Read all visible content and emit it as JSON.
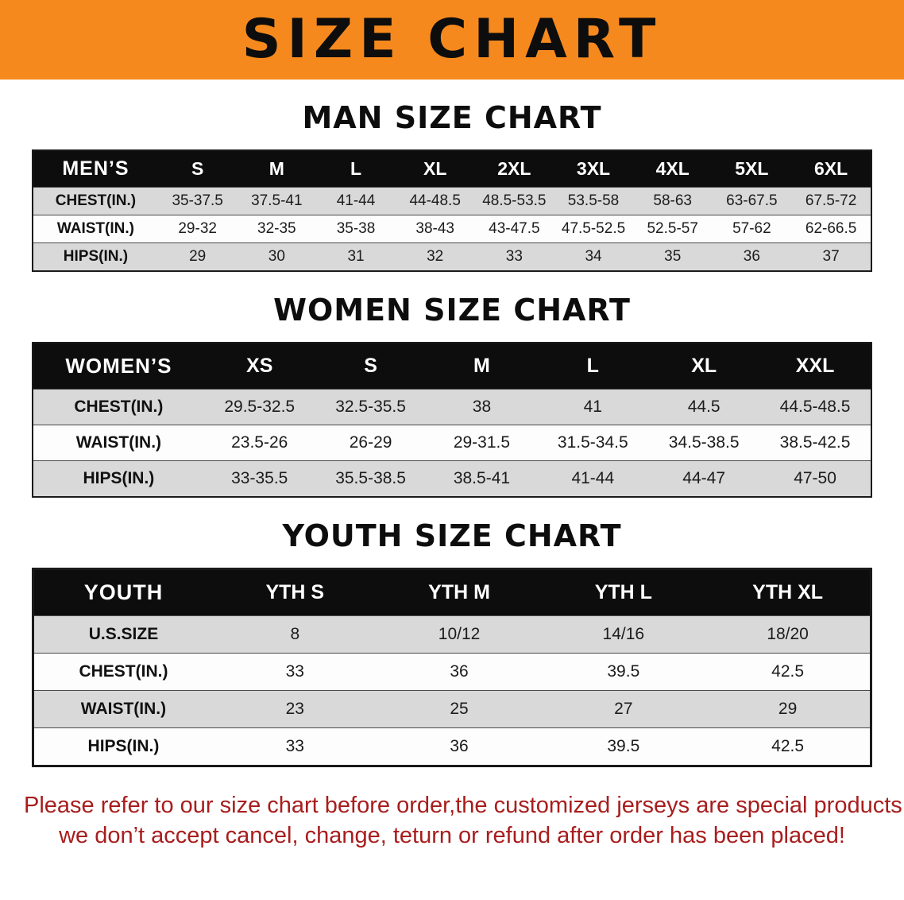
{
  "banner": {
    "title": "SIZE CHART"
  },
  "colors": {
    "banner_bg": "#f6891d",
    "table_header_bg": "#0d0d0d",
    "row_gray": "#d9d9d9",
    "footer_text": "#a81d1d"
  },
  "sections": [
    {
      "heading": "MAN SIZE CHART",
      "table": {
        "header": [
          "MEN’S",
          "S",
          "M",
          "L",
          "XL",
          "2XL",
          "3XL",
          "4XL",
          "5XL",
          "6XL"
        ],
        "rows": [
          [
            "CHEST(IN.)",
            "35-37.5",
            "37.5-41",
            "41-44",
            "44-48.5",
            "48.5-53.5",
            "53.5-58",
            "58-63",
            "63-67.5",
            "67.5-72"
          ],
          [
            "WAIST(IN.)",
            "29-32",
            "32-35",
            "35-38",
            "38-43",
            "43-47.5",
            "47.5-52.5",
            "52.5-57",
            "57-62",
            "62-66.5"
          ],
          [
            "HIPS(IN.)",
            "29",
            "30",
            "31",
            "32",
            "33",
            "34",
            "35",
            "36",
            "37"
          ]
        ]
      }
    },
    {
      "heading": "WOMEN SIZE CHART",
      "table": {
        "header": [
          "WOMEN’S",
          "XS",
          "S",
          "M",
          "L",
          "XL",
          "XXL"
        ],
        "rows": [
          [
            "CHEST(IN.)",
            "29.5-32.5",
            "32.5-35.5",
            "38",
            "41",
            "44.5",
            "44.5-48.5"
          ],
          [
            "WAIST(IN.)",
            "23.5-26",
            "26-29",
            "29-31.5",
            "31.5-34.5",
            "34.5-38.5",
            "38.5-42.5"
          ],
          [
            "HIPS(IN.)",
            "33-35.5",
            "35.5-38.5",
            "38.5-41",
            "41-44",
            "44-47",
            "47-50"
          ]
        ]
      }
    },
    {
      "heading": "YOUTH SIZE CHART",
      "table": {
        "header": [
          "YOUTH",
          "YTH S",
          "YTH M",
          "YTH L",
          "YTH XL"
        ],
        "rows": [
          [
            "U.S.SIZE",
            "8",
            "10/12",
            "14/16",
            "18/20"
          ],
          [
            "CHEST(IN.)",
            "33",
            "36",
            "39.5",
            "42.5"
          ],
          [
            "WAIST(IN.)",
            "23",
            "25",
            "27",
            "29"
          ],
          [
            "HIPS(IN.)",
            "33",
            "36",
            "39.5",
            "42.5"
          ]
        ]
      }
    }
  ],
  "footer": {
    "line1": "Please refer to our size chart before order,the customized jerseys are special products,",
    "line2": "we don’t accept cancel, change, teturn or refund after order has been placed!"
  }
}
